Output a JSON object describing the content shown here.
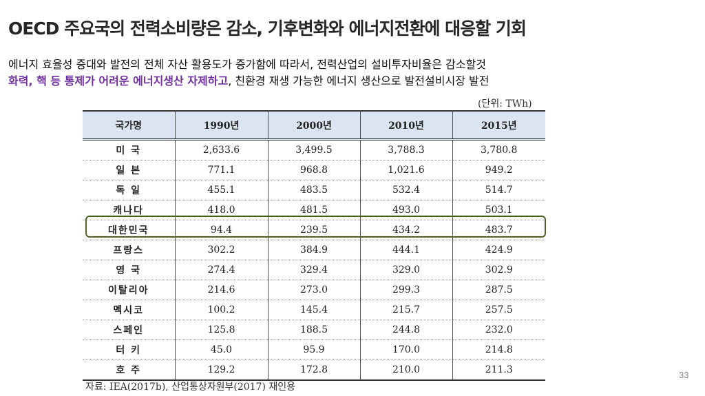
{
  "slide": {
    "title": "OECD 주요국의 전력소비량은 감소, 기후변화와 에너지전환에 대응할 기회",
    "subtitle_line1": "에너지 효율성 증대와 발전의 전체 자산 활용도가 증가함에 따라서, 전력산업의 설비투자비율은 감소할것",
    "subtitle_line2_highlight": "화력, 핵 등 통제가 어려운 에너지생산 자제하고",
    "subtitle_line2_rest": ", 친환경 재생 가능한 에너지 생산으로 발전설비시장 발전",
    "unit": "(단위: TWh)",
    "source": "자료: IEA(2017b), 산업통상자원부(2017) 재인용",
    "page_number": "33"
  },
  "table": {
    "headers": [
      "국가명",
      "1990년",
      "2000년",
      "2010년",
      "2015년"
    ],
    "rows": [
      [
        "미 국",
        "2,633.6",
        "3,499.5",
        "3,788.3",
        "3,780.8"
      ],
      [
        "일 본",
        "771.1",
        "968.8",
        "1,021.6",
        "949.2"
      ],
      [
        "독 일",
        "455.1",
        "483.5",
        "532.4",
        "514.7"
      ],
      [
        "캐나다",
        "418.0",
        "481.5",
        "493.0",
        "503.1"
      ],
      [
        "대한민국",
        "94.4",
        "239.5",
        "434.2",
        "483.7"
      ],
      [
        "프랑스",
        "302.2",
        "384.9",
        "444.1",
        "424.9"
      ],
      [
        "영 국",
        "274.4",
        "329.4",
        "329.0",
        "302.9"
      ],
      [
        "이탈리아",
        "214.6",
        "273.0",
        "299.3",
        "287.5"
      ],
      [
        "멕시코",
        "100.2",
        "145.4",
        "215.7",
        "257.5"
      ],
      [
        "스페인",
        "125.8",
        "188.5",
        "244.8",
        "232.0"
      ],
      [
        "터 키",
        "45.0",
        "95.9",
        "170.0",
        "214.8"
      ],
      [
        "호 주",
        "129.2",
        "172.8",
        "210.0",
        "211.3"
      ]
    ]
  },
  "colors": {
    "highlight_text": "#7030a0",
    "header_bg": "#dbe5f1",
    "highlight_box": "#4f6228"
  }
}
